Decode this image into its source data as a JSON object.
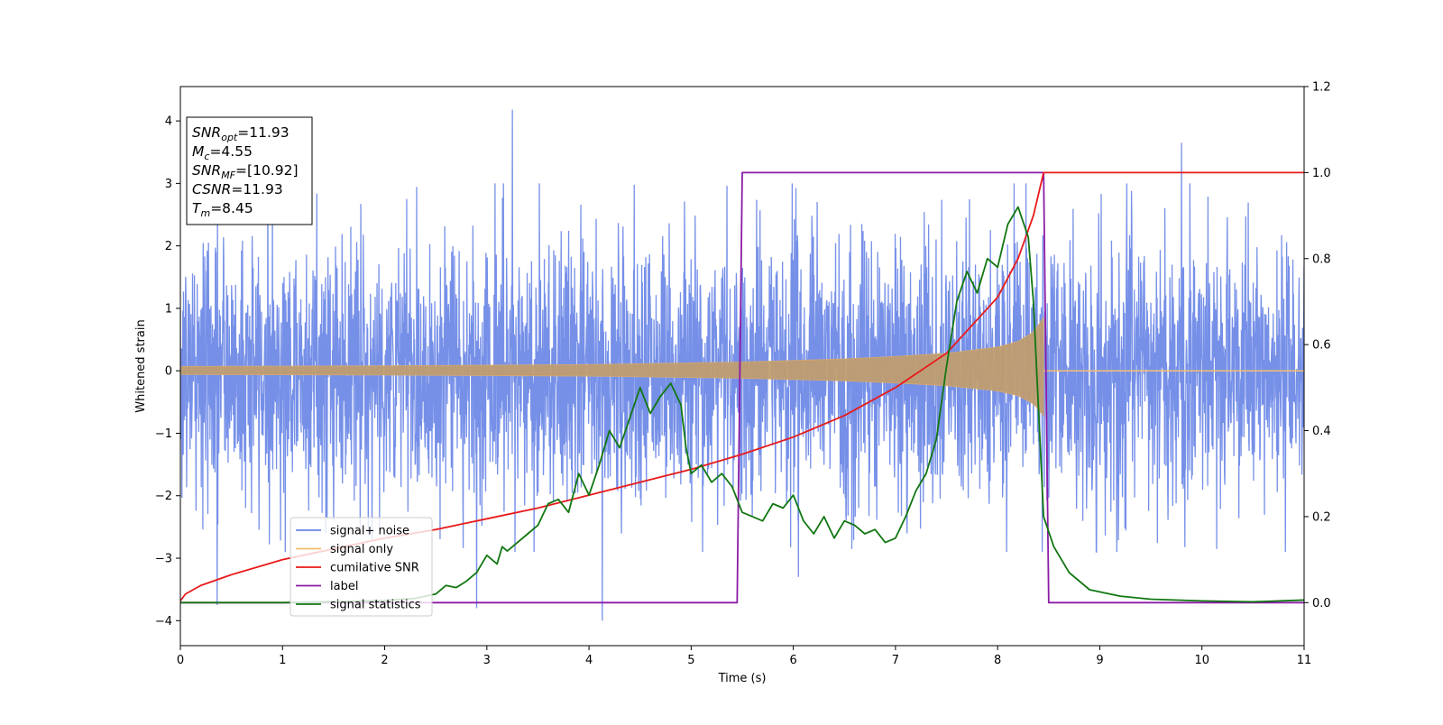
{
  "chart_data": {
    "type": "line",
    "xlabel": "Time (s)",
    "ylabel": "Whitened strain",
    "xlim": [
      0,
      11
    ],
    "ylim_left": [
      -4.4,
      4.55
    ],
    "ylim_right": [
      -0.1,
      1.2
    ],
    "x_ticks": [
      0,
      1,
      2,
      3,
      4,
      5,
      6,
      7,
      8,
      9,
      10,
      11
    ],
    "y_ticks_left": [
      -4,
      -3,
      -2,
      -1,
      0,
      1,
      2,
      3,
      4
    ],
    "y_ticks_right": [
      "0.0",
      "0.2",
      "0.4",
      "0.6",
      "0.8",
      "1.0",
      "1.2"
    ],
    "grid": false,
    "legend_position": "lower-left",
    "colors": {
      "signal_noise": "#6a87e6",
      "signal_only": "#f5be6e",
      "cumulative_snr": "#e81a1a",
      "label": "#8b1ba6",
      "signal_statistics": "#117711"
    },
    "annotation_box": {
      "lines": [
        {
          "base": "SNR",
          "sub": "opt",
          "rest": "=11.93"
        },
        {
          "base": "M",
          "sub": "c",
          "rest": "=4.55"
        },
        {
          "base": "SNR",
          "sub": "MF",
          "rest": "=[10.92]"
        },
        {
          "base": "CSNR",
          "sub": "",
          "rest": "=11.93"
        },
        {
          "base": "T",
          "sub": "m",
          "rest": "=8.45"
        }
      ]
    },
    "series": [
      {
        "name": "signal+ noise",
        "axis": "left",
        "kind": "noise",
        "noise_sigma": 1.0,
        "extremes": [
          {
            "x": 3.25,
            "y": 4.18
          },
          {
            "x": 9.8,
            "y": 3.65
          },
          {
            "x": 2.9,
            "y": -3.8
          },
          {
            "x": 4.13,
            "y": -4.0
          },
          {
            "x": 0.36,
            "y": -3.75
          },
          {
            "x": 6.05,
            "y": -3.3
          }
        ]
      },
      {
        "name": "signal only",
        "axis": "left",
        "kind": "chirp_envelope",
        "amplitude": [
          {
            "x": 0,
            "y": 0.07
          },
          {
            "x": 2,
            "y": 0.08
          },
          {
            "x": 4,
            "y": 0.1
          },
          {
            "x": 5.5,
            "y": 0.14
          },
          {
            "x": 6.5,
            "y": 0.19
          },
          {
            "x": 7.0,
            "y": 0.23
          },
          {
            "x": 7.5,
            "y": 0.28
          },
          {
            "x": 8.0,
            "y": 0.38
          },
          {
            "x": 8.2,
            "y": 0.47
          },
          {
            "x": 8.35,
            "y": 0.62
          },
          {
            "x": 8.45,
            "y": 0.85
          }
        ],
        "merger_x": 8.45
      },
      {
        "name": "cumilative SNR",
        "axis": "right",
        "x": [
          0,
          0.05,
          0.2,
          0.5,
          1,
          1.5,
          2,
          2.5,
          3,
          3.5,
          4,
          4.5,
          5,
          5.5,
          6,
          6.5,
          7,
          7.5,
          8,
          8.2,
          8.35,
          8.45,
          11
        ],
        "y": [
          0.004,
          0.02,
          0.04,
          0.065,
          0.1,
          0.125,
          0.15,
          0.17,
          0.195,
          0.22,
          0.25,
          0.28,
          0.31,
          0.345,
          0.385,
          0.435,
          0.5,
          0.58,
          0.71,
          0.8,
          0.9,
          1.0,
          1.0
        ]
      },
      {
        "name": "label",
        "axis": "right",
        "x": [
          0,
          5.45,
          5.5,
          8.45,
          8.5,
          11
        ],
        "y": [
          0,
          0,
          1,
          1,
          0,
          0
        ]
      },
      {
        "name": "signal statistics",
        "axis": "right",
        "x": [
          0,
          1,
          2,
          2.3,
          2.5,
          2.6,
          2.7,
          2.8,
          2.9,
          3.0,
          3.1,
          3.15,
          3.2,
          3.3,
          3.4,
          3.5,
          3.6,
          3.7,
          3.8,
          3.9,
          4.0,
          4.1,
          4.2,
          4.3,
          4.4,
          4.5,
          4.6,
          4.7,
          4.8,
          4.9,
          4.95,
          5.0,
          5.1,
          5.2,
          5.3,
          5.4,
          5.5,
          5.6,
          5.7,
          5.8,
          5.9,
          6.0,
          6.1,
          6.2,
          6.3,
          6.4,
          6.5,
          6.6,
          6.7,
          6.8,
          6.9,
          7.0,
          7.1,
          7.2,
          7.3,
          7.4,
          7.5,
          7.6,
          7.7,
          7.8,
          7.9,
          8.0,
          8.1,
          8.2,
          8.3,
          8.35,
          8.4,
          8.45,
          8.55,
          8.7,
          8.9,
          9.2,
          9.5,
          10,
          10.5,
          11
        ],
        "y": [
          0.0,
          0.0,
          0.005,
          0.01,
          0.02,
          0.04,
          0.035,
          0.05,
          0.07,
          0.11,
          0.09,
          0.13,
          0.12,
          0.14,
          0.16,
          0.18,
          0.23,
          0.24,
          0.21,
          0.3,
          0.25,
          0.32,
          0.4,
          0.36,
          0.43,
          0.5,
          0.44,
          0.48,
          0.51,
          0.46,
          0.36,
          0.3,
          0.32,
          0.28,
          0.3,
          0.27,
          0.21,
          0.2,
          0.19,
          0.23,
          0.22,
          0.25,
          0.19,
          0.16,
          0.2,
          0.15,
          0.19,
          0.18,
          0.16,
          0.17,
          0.14,
          0.15,
          0.2,
          0.26,
          0.3,
          0.38,
          0.55,
          0.7,
          0.77,
          0.72,
          0.8,
          0.78,
          0.88,
          0.92,
          0.85,
          0.7,
          0.45,
          0.2,
          0.13,
          0.07,
          0.03,
          0.015,
          0.008,
          0.004,
          0.002,
          0.006
        ]
      }
    ]
  }
}
